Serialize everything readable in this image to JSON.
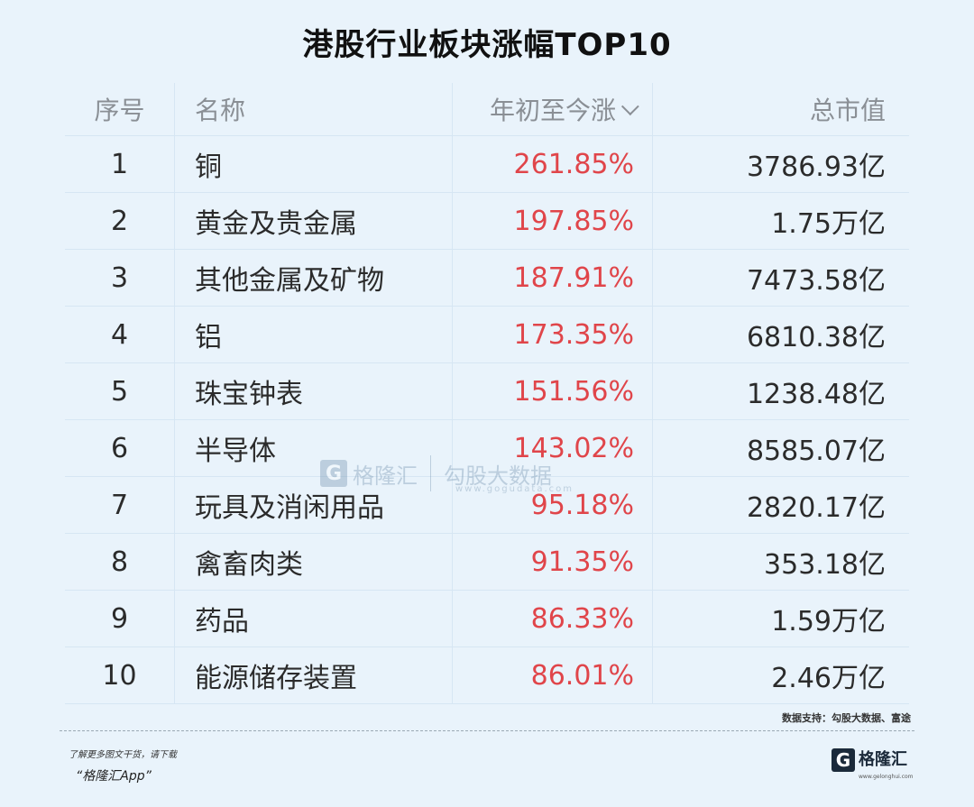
{
  "title": "港股行业板块涨幅TOP10",
  "table": {
    "headers": {
      "idx": "序号",
      "name": "名称",
      "change": "年初至今涨",
      "cap": "总市值"
    },
    "rows": [
      {
        "idx": "1",
        "name": "铜",
        "change": "261.85%",
        "cap": "3786.93亿"
      },
      {
        "idx": "2",
        "name": "黄金及贵金属",
        "change": "197.85%",
        "cap": "1.75万亿"
      },
      {
        "idx": "3",
        "name": "其他金属及矿物",
        "change": "187.91%",
        "cap": "7473.58亿"
      },
      {
        "idx": "4",
        "name": "铝",
        "change": "173.35%",
        "cap": "6810.38亿"
      },
      {
        "idx": "5",
        "name": "珠宝钟表",
        "change": "151.56%",
        "cap": "1238.48亿"
      },
      {
        "idx": "6",
        "name": "半导体",
        "change": "143.02%",
        "cap": "8585.07亿"
      },
      {
        "idx": "7",
        "name": "玩具及消闲用品",
        "change": "95.18%",
        "cap": "2820.17亿"
      },
      {
        "idx": "8",
        "name": "禽畜肉类",
        "change": "91.35%",
        "cap": "353.18亿"
      },
      {
        "idx": "9",
        "name": "药品",
        "change": "86.33%",
        "cap": "1.59万亿"
      },
      {
        "idx": "10",
        "name": "能源储存装置",
        "change": "86.01%",
        "cap": "2.46万亿"
      }
    ]
  },
  "watermark": {
    "mark": "G",
    "text": "格隆汇",
    "brand": "勾股大数据",
    "url": "www.gogudata.com"
  },
  "source": "数据支持：勾股大数据、富途",
  "promo": {
    "line1": "了解更多图文干货，请下载",
    "line2": "“格隆汇App”"
  },
  "footer_logo": {
    "mark": "G",
    "text": "格隆汇",
    "url": "www.gelonghui.com"
  },
  "colors": {
    "background": "#e9f3fb",
    "positive": "#e0454a"
  }
}
